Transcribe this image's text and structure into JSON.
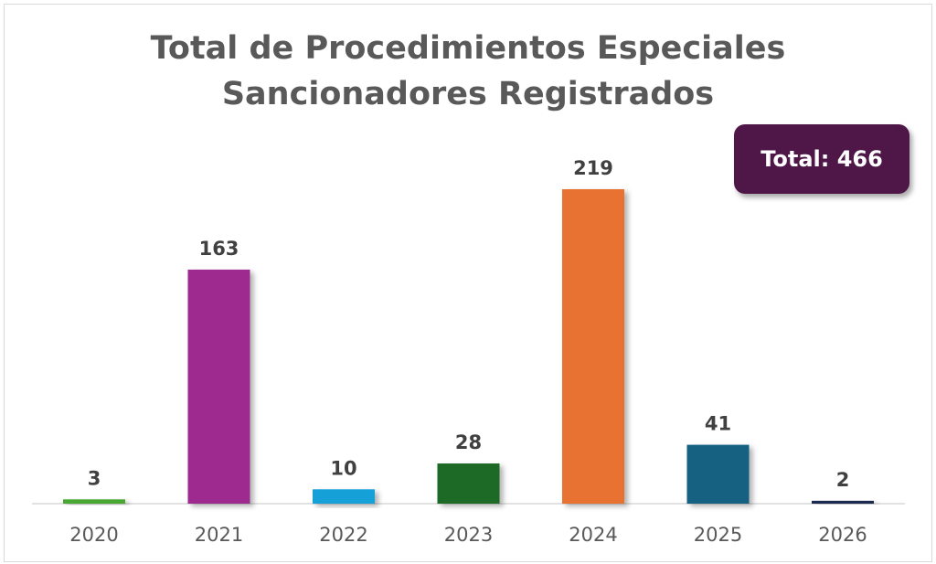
{
  "chart_data": {
    "type": "bar",
    "title": "Total de Procedimientos Especiales Sancionadores Registrados",
    "title_lines": [
      "Total de Procedimientos Especiales",
      "Sancionadores Registrados"
    ],
    "categories": [
      "2020",
      "2021",
      "2022",
      "2023",
      "2024",
      "2025",
      "2026"
    ],
    "values": [
      3,
      163,
      10,
      28,
      219,
      41,
      2
    ],
    "colors": [
      "#4aa832",
      "#9e2a8f",
      "#13a0d8",
      "#1a6b25",
      "#e87233",
      "#156082",
      "#1a2a50"
    ],
    "xlabel": "",
    "ylabel": "",
    "ylim": [
      0,
      219
    ],
    "grid": false,
    "annotation": "Total: 466"
  }
}
